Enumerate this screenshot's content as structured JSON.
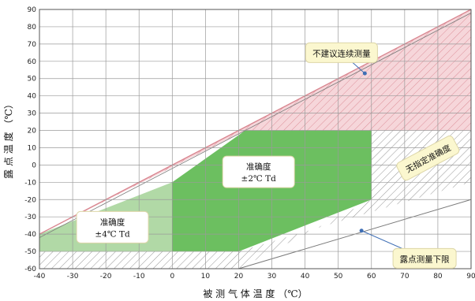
{
  "chart_data": {
    "type": "area",
    "xlabel": "被 测 气 体 温 度 （℃）",
    "ylabel": "露 点 温 度 （℃）",
    "xlim": [
      -40,
      90
    ],
    "ylim": [
      -60,
      90
    ],
    "x_ticks": [
      -40,
      -30,
      -20,
      -10,
      0,
      10,
      20,
      30,
      40,
      50,
      60,
      70,
      80,
      90
    ],
    "y_ticks": [
      -60,
      -50,
      -40,
      -30,
      -20,
      -10,
      0,
      10,
      20,
      30,
      40,
      50,
      60,
      70,
      80,
      90
    ],
    "grid": true,
    "regions": [
      {
        "id": "not-recommended",
        "fill": "#f6d6da",
        "hatch": "#d98791",
        "points": [
          [
            -40,
            -40
          ],
          [
            90,
            90
          ],
          [
            90,
            20
          ],
          [
            22,
            20
          ]
        ]
      },
      {
        "id": "unspecified-accuracy",
        "fill": "#ffffff",
        "hatch": "#8a8a8a",
        "points": [
          [
            60,
            20
          ],
          [
            90,
            20
          ],
          [
            90,
            -10
          ],
          [
            20,
            -50
          ],
          [
            -40,
            -50
          ],
          [
            -40,
            -60
          ],
          [
            20,
            -60
          ],
          [
            60,
            -20
          ]
        ]
      },
      {
        "id": "accuracy-4c",
        "fill": "#b1d9a6",
        "points": [
          [
            -40,
            -40
          ],
          [
            0,
            -10
          ],
          [
            0,
            -50
          ],
          [
            -40,
            -50
          ]
        ]
      },
      {
        "id": "accuracy-2c",
        "fill": "#6cbf60",
        "points": [
          [
            0,
            -10
          ],
          [
            22,
            20
          ],
          [
            60,
            20
          ],
          [
            60,
            -20
          ],
          [
            20,
            -50
          ],
          [
            0,
            -50
          ]
        ]
      }
    ],
    "callouts": [
      {
        "id": "not-recommended",
        "lines": [
          "不建议连续测量"
        ],
        "at": [
          51,
          65
        ],
        "point": [
          58,
          53
        ]
      },
      {
        "id": "accuracy-2c",
        "lines": [
          "准确度",
          "±2℃  Td"
        ],
        "at": [
          26,
          -4
        ]
      },
      {
        "id": "accuracy-4c",
        "lines": [
          "准确度",
          "±4℃  Td"
        ],
        "at": [
          -18,
          -36
        ]
      },
      {
        "id": "unspecified-accuracy",
        "lines": [
          "无指定准确度"
        ],
        "at": [
          77,
          4
        ],
        "rotate": -28
      },
      {
        "id": "dew-point-lower-limit",
        "lines": [
          "露点测量下限"
        ],
        "at": [
          76,
          -54
        ],
        "point": [
          57,
          -38
        ]
      }
    ],
    "colors": {
      "grid": "#9a9a9a",
      "callout_border": "#ddd6a8",
      "callout_fill": "#fbf7cf",
      "leader": "#3f6fb5"
    }
  }
}
